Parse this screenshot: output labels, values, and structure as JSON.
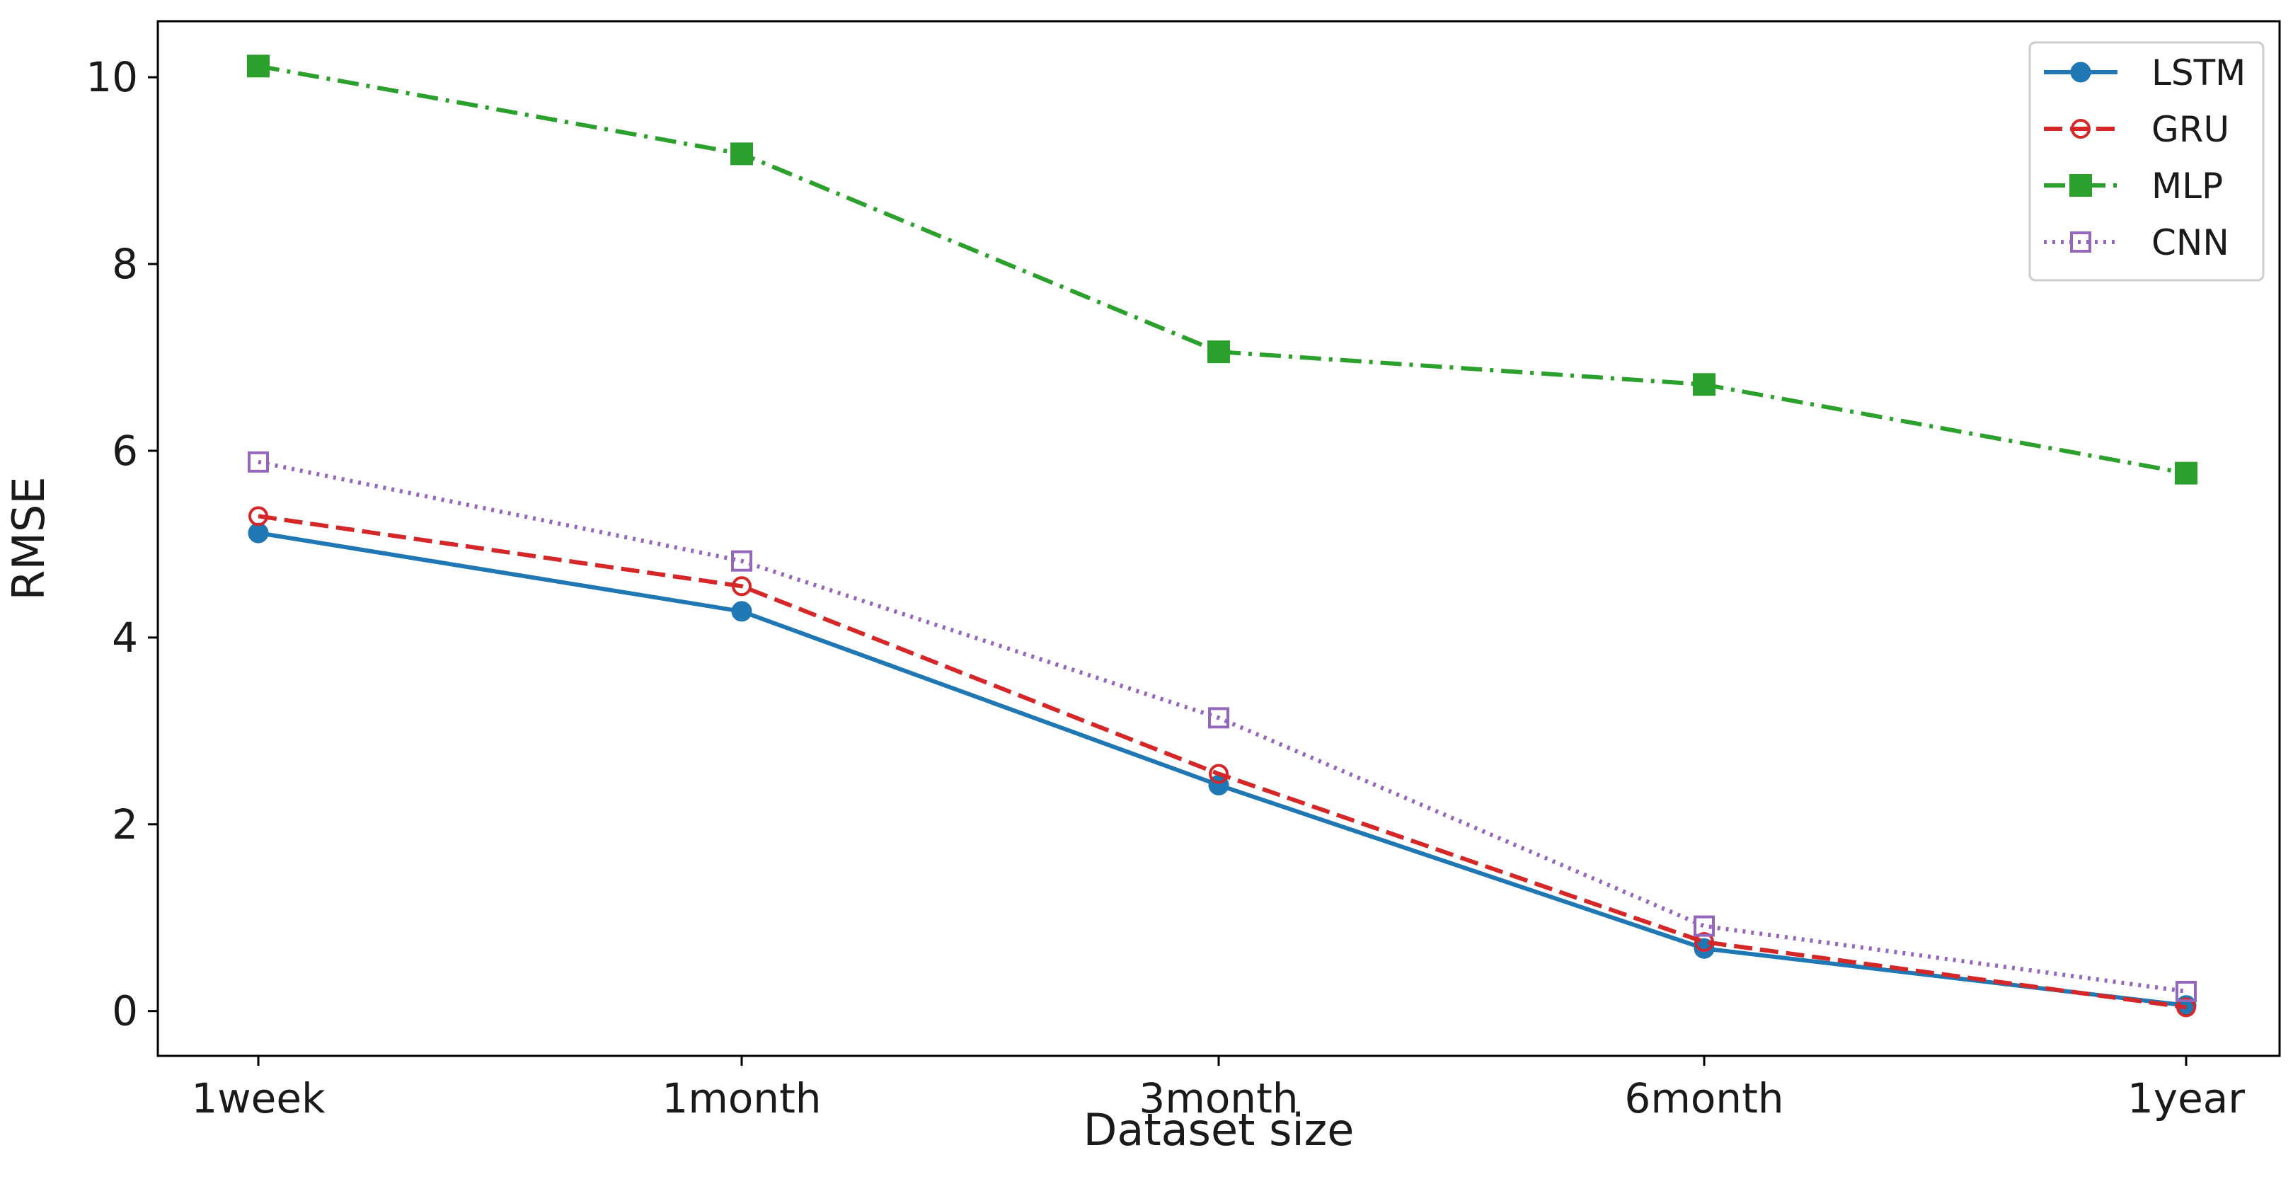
{
  "chart_data": {
    "type": "line",
    "title": "",
    "xlabel": "Dataset size",
    "ylabel": "RMSE",
    "categories": [
      "1week",
      "1month",
      "3month",
      "6month",
      "1year"
    ],
    "ylim": [
      -0.48,
      10.6
    ],
    "yticks": [
      0,
      2,
      4,
      6,
      8,
      10
    ],
    "grid": false,
    "legend_position": "top-right",
    "series": [
      {
        "name": "LSTM",
        "values": [
          5.12,
          4.28,
          2.42,
          0.67,
          0.06
        ],
        "color": "#1f77b4",
        "line": "solid",
        "marker": "circle-filled"
      },
      {
        "name": "GRU",
        "values": [
          5.3,
          4.55,
          2.54,
          0.74,
          0.04
        ],
        "color": "#d62728",
        "line": "dashed",
        "marker": "circle-open"
      },
      {
        "name": "MLP",
        "values": [
          10.12,
          9.18,
          7.06,
          6.71,
          5.76
        ],
        "color": "#2ca02c",
        "line": "dashdot",
        "marker": "square-filled"
      },
      {
        "name": "CNN",
        "values": [
          5.88,
          4.82,
          3.14,
          0.91,
          0.21
        ],
        "color": "#9467bd",
        "line": "dotted",
        "marker": "square-open"
      }
    ]
  }
}
